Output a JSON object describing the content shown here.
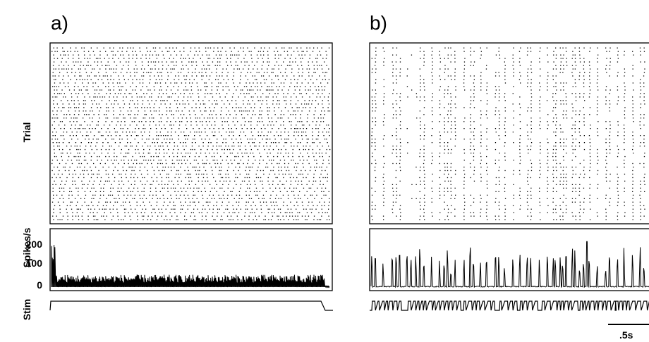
{
  "chart_data": [
    {
      "type": "scatter",
      "panel": "a)",
      "ylabel": "Trial",
      "histogram_ylabel": "Spikes/s",
      "histogram_yticks": [
        "0",
        "100",
        "200"
      ],
      "histogram_ylim": [
        0,
        250
      ],
      "stim_label": "Stim",
      "raster_trials": 50,
      "raster_spike_rate": 65,
      "psth_baseline": 45,
      "psth_peak": 235,
      "stimulus": "constant step"
    },
    {
      "type": "scatter",
      "panel": "b)",
      "raster_trials": 50,
      "psth_baseline": 5,
      "psth_peak": 240,
      "stimulus": "pulse train",
      "scale_bar_label": ".5s"
    }
  ]
}
